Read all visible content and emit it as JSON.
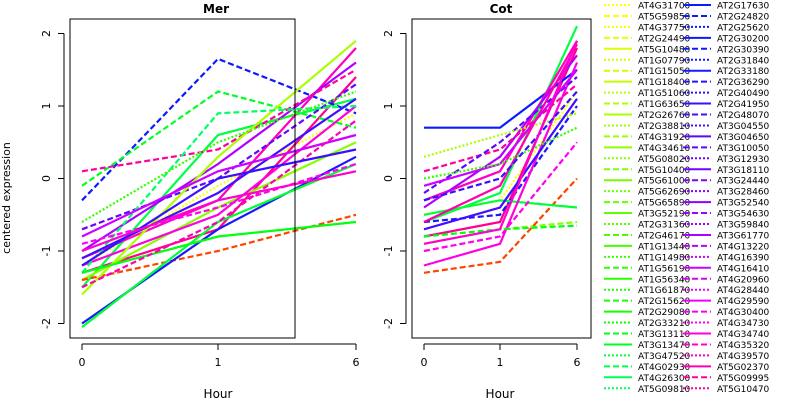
{
  "ylabel": "centered expression",
  "xlabel": "Hour",
  "panels": [
    {
      "title": "Mer",
      "x_ticks": [
        "0",
        "1",
        "6"
      ],
      "y_ticks": [
        "-2",
        "-1",
        "0",
        "1",
        "2"
      ]
    },
    {
      "title": "Cot",
      "x_ticks": [
        "0",
        "1",
        "6"
      ],
      "y_ticks": [
        "-2",
        "-1",
        "0",
        "1",
        "2"
      ]
    }
  ],
  "legend": {
    "col1": [
      {
        "label": "AT4G31700",
        "color": "#ffff00",
        "style": "dotted"
      },
      {
        "label": "AT5G59850",
        "color": "#ffff00",
        "style": "dashed"
      },
      {
        "label": "AT4G37750",
        "color": "#eeff00",
        "style": "dotted"
      },
      {
        "label": "AT2G24490",
        "color": "#e6ff00",
        "style": "dashed"
      },
      {
        "label": "AT5G10480",
        "color": "#ddff00",
        "style": "solid"
      },
      {
        "label": "AT1G07790",
        "color": "#d4ff00",
        "style": "dotted"
      },
      {
        "label": "AT1G15050",
        "color": "#ccff00",
        "style": "dashed"
      },
      {
        "label": "AT1G18400",
        "color": "#c3ff00",
        "style": "solid"
      },
      {
        "label": "AT1G51060",
        "color": "#bbff00",
        "style": "dotted"
      },
      {
        "label": "AT1G63650",
        "color": "#b3ff00",
        "style": "dashed"
      },
      {
        "label": "AT2G26760",
        "color": "#aaff00",
        "style": "solid"
      },
      {
        "label": "AT2G38810",
        "color": "#a2ff00",
        "style": "dotted"
      },
      {
        "label": "AT4G31920",
        "color": "#99ff00",
        "style": "dashed"
      },
      {
        "label": "AT4G34610",
        "color": "#91ff00",
        "style": "solid"
      },
      {
        "label": "AT5G08020",
        "color": "#88ff00",
        "style": "dotted"
      },
      {
        "label": "AT5G10400",
        "color": "#80ff00",
        "style": "dashed"
      },
      {
        "label": "AT5G61000",
        "color": "#77ff00",
        "style": "solid"
      },
      {
        "label": "AT5G62690",
        "color": "#6fff00",
        "style": "dotted"
      },
      {
        "label": "AT5G65890",
        "color": "#66ff00",
        "style": "dashed"
      },
      {
        "label": "AT3G52190",
        "color": "#5eff00",
        "style": "solid"
      },
      {
        "label": "AT2G31360",
        "color": "#55ff00",
        "style": "dotted"
      },
      {
        "label": "AT2G46170",
        "color": "#4dff00",
        "style": "dashed"
      },
      {
        "label": "AT1G13440",
        "color": "#44ff00",
        "style": "solid"
      },
      {
        "label": "AT1G14980",
        "color": "#3cff00",
        "style": "dotted"
      },
      {
        "label": "AT1G56190",
        "color": "#33ff00",
        "style": "dashed"
      },
      {
        "label": "AT1G56340",
        "color": "#2bff00",
        "style": "solid"
      },
      {
        "label": "AT1G61870",
        "color": "#22ff00",
        "style": "dotted"
      },
      {
        "label": "AT2G15620",
        "color": "#1aff00",
        "style": "dashed"
      },
      {
        "label": "AT2G29080",
        "color": "#11ff00",
        "style": "solid"
      },
      {
        "label": "AT2G33210",
        "color": "#09ff00",
        "style": "dotted"
      },
      {
        "label": "AT3G13110",
        "color": "#00ff11",
        "style": "dashed"
      },
      {
        "label": "AT3G13470",
        "color": "#00ff22",
        "style": "solid"
      },
      {
        "label": "AT3G47520",
        "color": "#00ff33",
        "style": "dotted"
      },
      {
        "label": "AT4G02930",
        "color": "#00ff44",
        "style": "dashed"
      },
      {
        "label": "AT4G26300",
        "color": "#00ff55",
        "style": "solid"
      },
      {
        "label": "AT5G09810",
        "color": "#00ff66",
        "style": "dotted"
      }
    ],
    "col2": [
      {
        "label": "AT2G17630",
        "color": "#0a1cff",
        "style": "solid"
      },
      {
        "label": "AT2G24820",
        "color": "#0a1cff",
        "style": "dashed"
      },
      {
        "label": "AT2G25620",
        "color": "#0a1cff",
        "style": "dotted"
      },
      {
        "label": "AT2G30200",
        "color": "#0a1cff",
        "style": "solid"
      },
      {
        "label": "AT2G30390",
        "color": "#0a1cff",
        "style": "dashed"
      },
      {
        "label": "AT2G31840",
        "color": "#0a1cff",
        "style": "dotted"
      },
      {
        "label": "AT2G33180",
        "color": "#1a18ff",
        "style": "solid"
      },
      {
        "label": "AT2G36290",
        "color": "#2414ff",
        "style": "dashed"
      },
      {
        "label": "AT2G40490",
        "color": "#2e12ff",
        "style": "dotted"
      },
      {
        "label": "AT2G41950",
        "color": "#3810ff",
        "style": "solid"
      },
      {
        "label": "AT2G48070",
        "color": "#420eff",
        "style": "dashed"
      },
      {
        "label": "AT3G04550",
        "color": "#4c0cff",
        "style": "dotted"
      },
      {
        "label": "AT3G04650",
        "color": "#560aff",
        "style": "solid"
      },
      {
        "label": "AT3G10050",
        "color": "#6008ff",
        "style": "dashed"
      },
      {
        "label": "AT3G12930",
        "color": "#6a06ff",
        "style": "dotted"
      },
      {
        "label": "AT3G18110",
        "color": "#7404ff",
        "style": "solid"
      },
      {
        "label": "AT3G24440",
        "color": "#7e02ff",
        "style": "dashed"
      },
      {
        "label": "AT3G28460",
        "color": "#8800ff",
        "style": "dotted"
      },
      {
        "label": "AT3G52540",
        "color": "#9200ff",
        "style": "solid"
      },
      {
        "label": "AT3G54630",
        "color": "#9c00ff",
        "style": "dashed"
      },
      {
        "label": "AT3G59840",
        "color": "#a600ff",
        "style": "dotted"
      },
      {
        "label": "AT3G61770",
        "color": "#b000ff",
        "style": "solid"
      },
      {
        "label": "AT4G13220",
        "color": "#ba00ff",
        "style": "dashed"
      },
      {
        "label": "AT4G16390",
        "color": "#c400ff",
        "style": "dotted"
      },
      {
        "label": "AT4G16410",
        "color": "#ce00ff",
        "style": "solid"
      },
      {
        "label": "AT4G20960",
        "color": "#d800ff",
        "style": "dashed"
      },
      {
        "label": "AT4G28440",
        "color": "#e200ff",
        "style": "dotted"
      },
      {
        "label": "AT4G29590",
        "color": "#ec00ff",
        "style": "solid"
      },
      {
        "label": "AT4G30400",
        "color": "#f600f8",
        "style": "dashed"
      },
      {
        "label": "AT4G34730",
        "color": "#ff00f0",
        "style": "dotted"
      },
      {
        "label": "AT4G34740",
        "color": "#ff00e0",
        "style": "solid"
      },
      {
        "label": "AT4G35320",
        "color": "#ff00d0",
        "style": "dashed"
      },
      {
        "label": "AT4G39570",
        "color": "#ff00c0",
        "style": "dotted"
      },
      {
        "label": "AT5G02370",
        "color": "#ff00b0",
        "style": "solid"
      },
      {
        "label": "AT5G09995",
        "color": "#ff00a0",
        "style": "dashed"
      },
      {
        "label": "AT5G10470",
        "color": "#ff0090",
        "style": "dotted"
      }
    ]
  },
  "chart_data": [
    {
      "type": "line",
      "title": "Mer",
      "x": [
        "0",
        "1",
        "6"
      ],
      "xlabel": "Hour",
      "ylabel": "centered expression",
      "ylim": [
        -2.2,
        2.2
      ],
      "series": [
        {
          "color": "#ffff00",
          "style": "dotted",
          "values": [
            -1.2,
            -0.1,
            0.9
          ]
        },
        {
          "color": "#ff0090",
          "style": "solid",
          "values": [
            -1.3,
            -0.7,
            1.4
          ]
        },
        {
          "color": "#00ff44",
          "style": "solid",
          "values": [
            -1.5,
            0.6,
            1.1
          ]
        },
        {
          "color": "#0a1cff",
          "style": "dashed",
          "values": [
            -0.3,
            1.65,
            0.9
          ]
        },
        {
          "color": "#ff00c0",
          "style": "solid",
          "values": [
            -1.1,
            -0.3,
            1.8
          ]
        },
        {
          "color": "#88ff00",
          "style": "solid",
          "values": [
            -1.4,
            -0.4,
            0.5
          ]
        },
        {
          "color": "#b000ff",
          "style": "solid",
          "values": [
            -1.0,
            0.2,
            1.6
          ]
        },
        {
          "color": "#00ff22",
          "style": "dashed",
          "values": [
            -0.1,
            1.2,
            0.7
          ]
        },
        {
          "color": "#ff00a0",
          "style": "dashed",
          "values": [
            0.1,
            0.4,
            1.5
          ]
        },
        {
          "color": "#ff4400",
          "style": "dashed",
          "values": [
            -1.4,
            -1.0,
            -0.5
          ]
        },
        {
          "color": "#1a18ff",
          "style": "solid",
          "values": [
            -2.0,
            -0.7,
            0.3
          ]
        },
        {
          "color": "#00ff33",
          "style": "solid",
          "values": [
            -2.05,
            -0.6,
            0.2
          ]
        },
        {
          "color": "#ff00e0",
          "style": "solid",
          "values": [
            -1.2,
            -0.5,
            1.0
          ]
        },
        {
          "color": "#6008ff",
          "style": "dashed",
          "values": [
            -0.7,
            0.0,
            1.3
          ]
        },
        {
          "color": "#aaff00",
          "style": "solid",
          "values": [
            -1.6,
            0.3,
            1.9
          ]
        },
        {
          "color": "#00ff66",
          "style": "dashed",
          "values": [
            -1.3,
            0.9,
            1.0
          ]
        },
        {
          "color": "#420eff",
          "style": "solid",
          "values": [
            -1.1,
            -0.2,
            1.1
          ]
        },
        {
          "color": "#ff00f0",
          "style": "dashed",
          "values": [
            -0.9,
            -0.4,
            0.2
          ]
        },
        {
          "color": "#ce00ff",
          "style": "solid",
          "values": [
            -0.8,
            0.1,
            0.6
          ]
        },
        {
          "color": "#00ff11",
          "style": "solid",
          "values": [
            -1.3,
            -0.8,
            -0.6
          ]
        },
        {
          "color": "#ff00b0",
          "style": "dashed",
          "values": [
            -1.5,
            -0.6,
            0.8
          ]
        },
        {
          "color": "#33ff00",
          "style": "dotted",
          "values": [
            -0.6,
            0.5,
            1.2
          ]
        },
        {
          "color": "#3810ff",
          "style": "solid",
          "values": [
            -1.2,
            0.0,
            0.4
          ]
        },
        {
          "color": "#ff00d0",
          "style": "solid",
          "values": [
            -1.0,
            -0.3,
            0.1
          ]
        }
      ]
    },
    {
      "type": "line",
      "title": "Cot",
      "x": [
        "0",
        "1",
        "6"
      ],
      "xlabel": "Hour",
      "ylabel": "",
      "ylim": [
        -2.2,
        2.2
      ],
      "series": [
        {
          "color": "#ffff00",
          "style": "dotted",
          "values": [
            -0.5,
            -0.3,
            1.2
          ]
        },
        {
          "color": "#ff0090",
          "style": "solid",
          "values": [
            -0.8,
            -0.6,
            1.8
          ]
        },
        {
          "color": "#00ff44",
          "style": "solid",
          "values": [
            -0.6,
            -0.2,
            2.1
          ]
        },
        {
          "color": "#0a1cff",
          "style": "solid",
          "values": [
            0.7,
            0.7,
            1.5
          ]
        },
        {
          "color": "#ff00c0",
          "style": "solid",
          "values": [
            -0.3,
            0.1,
            1.9
          ]
        },
        {
          "color": "#88ff00",
          "style": "dashed",
          "values": [
            -0.9,
            -0.7,
            -0.6
          ]
        },
        {
          "color": "#b000ff",
          "style": "solid",
          "values": [
            -0.4,
            0.3,
            1.7
          ]
        },
        {
          "color": "#ff4400",
          "style": "dashed",
          "values": [
            -1.3,
            -1.15,
            0.0
          ]
        },
        {
          "color": "#ff00a0",
          "style": "dashed",
          "values": [
            0.1,
            0.4,
            1.3
          ]
        },
        {
          "color": "#1a18ff",
          "style": "dashed",
          "values": [
            -0.6,
            -0.5,
            1.0
          ]
        },
        {
          "color": "#00ff33",
          "style": "solid",
          "values": [
            -0.5,
            -0.3,
            -0.4
          ]
        },
        {
          "color": "#ff00e0",
          "style": "solid",
          "values": [
            -1.2,
            -0.9,
            1.6
          ]
        },
        {
          "color": "#6008ff",
          "style": "dashed",
          "values": [
            -0.2,
            0.5,
            1.4
          ]
        },
        {
          "color": "#aaff00",
          "style": "dotted",
          "values": [
            0.3,
            0.6,
            0.9
          ]
        },
        {
          "color": "#420eff",
          "style": "solid",
          "values": [
            -0.7,
            -0.4,
            1.1
          ]
        },
        {
          "color": "#ff00f0",
          "style": "dashed",
          "values": [
            -1.0,
            -0.8,
            0.5
          ]
        },
        {
          "color": "#ce00ff",
          "style": "solid",
          "values": [
            -0.1,
            0.2,
            1.5
          ]
        },
        {
          "color": "#00ff11",
          "style": "dashed",
          "values": [
            -0.8,
            -0.7,
            -0.65
          ]
        },
        {
          "color": "#ff00b0",
          "style": "solid",
          "values": [
            -0.6,
            -0.1,
            1.85
          ]
        },
        {
          "color": "#33ff00",
          "style": "dotted",
          "values": [
            0.0,
            0.2,
            0.7
          ]
        },
        {
          "color": "#3810ff",
          "style": "dashed",
          "values": [
            -0.3,
            0.0,
            1.2
          ]
        },
        {
          "color": "#ff00d0",
          "style": "solid",
          "values": [
            -0.9,
            -0.7,
            1.9
          ]
        }
      ]
    }
  ]
}
